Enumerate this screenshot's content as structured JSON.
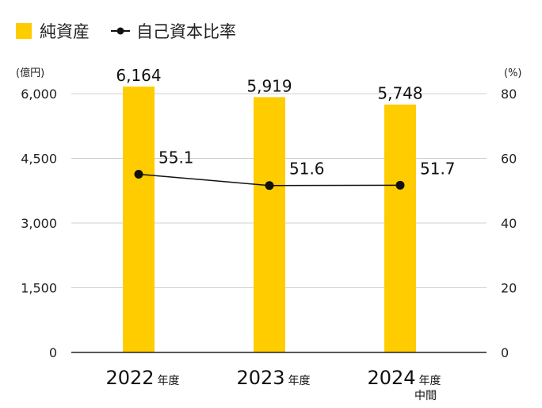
{
  "chart_data": {
    "type": "bar",
    "categories": [
      {
        "year": "2022",
        "suffix": "年度",
        "note": ""
      },
      {
        "year": "2023",
        "suffix": "年度",
        "note": ""
      },
      {
        "year": "2024",
        "suffix": "年度",
        "note": "中間"
      }
    ],
    "series": [
      {
        "name": "純資産",
        "type": "bar",
        "axis": "left",
        "color": "#FFCC00",
        "values": [
          6164,
          5919,
          5748
        ],
        "labels": [
          "6,164",
          "5,919",
          "5,748"
        ]
      },
      {
        "name": "自己資本比率",
        "type": "line",
        "axis": "right",
        "color": "#111111",
        "values": [
          55.1,
          51.6,
          51.7
        ],
        "labels": [
          "55.1",
          "51.6",
          "51.7"
        ]
      }
    ],
    "y_left": {
      "unit": "(億円)",
      "range": [
        0,
        6000
      ],
      "ticks": [
        0,
        1500,
        3000,
        4500,
        6000
      ],
      "tick_labels": [
        "0",
        "1,500",
        "3,000",
        "4,500",
        "6,000"
      ]
    },
    "y_right": {
      "unit": "(%)",
      "range": [
        0,
        80
      ],
      "ticks": [
        0,
        20,
        40,
        60,
        80
      ],
      "tick_labels": [
        "0",
        "20",
        "40",
        "60",
        "80"
      ]
    },
    "grid": true,
    "legend": "top-left"
  }
}
